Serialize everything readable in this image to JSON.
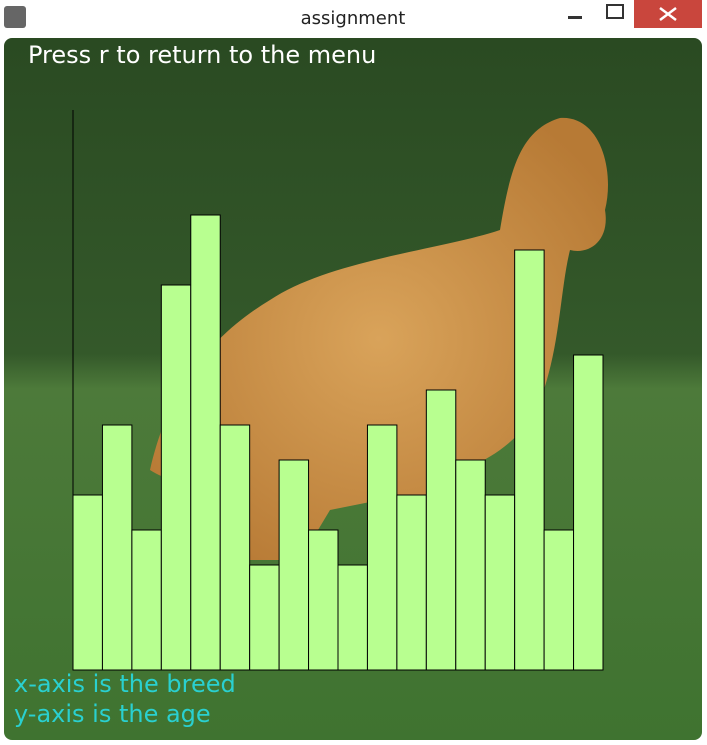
{
  "window": {
    "title": "assignment"
  },
  "chart_data": {
    "type": "bar",
    "annotations": [
      "Press r to return to the menu",
      "x-axis is the breed",
      "y-axis is the age"
    ],
    "categories": [
      null,
      null,
      null,
      null,
      null,
      null,
      null,
      null,
      null,
      null,
      null,
      null,
      null,
      null,
      null,
      null,
      null,
      null
    ],
    "values": [
      5,
      7,
      4,
      11,
      13,
      7,
      3,
      6,
      4,
      3,
      7,
      5,
      8,
      6,
      5,
      12,
      4,
      9
    ],
    "color": "#b8ff90",
    "ylim": [
      0,
      16
    ]
  }
}
